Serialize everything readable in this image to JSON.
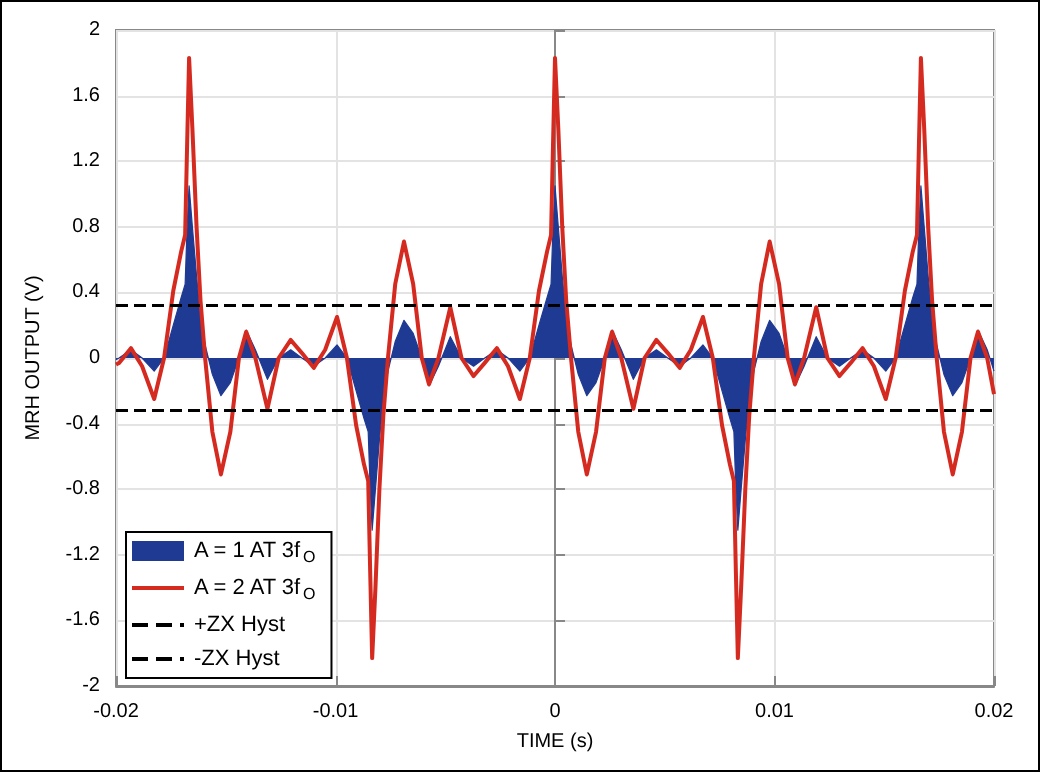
{
  "chart_data": {
    "type": "line",
    "xlabel": "TIME (s)",
    "ylabel": "MRH OUTPUT (V)",
    "xlim": [
      -0.02,
      0.02
    ],
    "xticks": [
      -0.02,
      -0.01,
      0,
      0.01,
      0.02
    ],
    "ylim": [
      -2,
      2
    ],
    "yticks": [
      -2,
      -1.6,
      -1.2,
      -0.8,
      -0.4,
      0,
      0.4,
      0.8,
      1.2,
      1.6,
      2
    ],
    "grid": true,
    "legend": "bottom left",
    "marker": "none",
    "x": [
      -0.02,
      -0.01986,
      -0.01932,
      -0.01881,
      -0.01826,
      -0.01781,
      -0.01739,
      -0.01703,
      -0.01685,
      -0.01676,
      -0.01667,
      -0.01652,
      -0.01633,
      -0.01615,
      -0.01594,
      -0.01561,
      -0.01522,
      -0.01479,
      -0.0144,
      -0.01407,
      -0.01365,
      -0.0131,
      -0.01259,
      -0.01204,
      -0.01153,
      -0.01099,
      -0.01047,
      -0.00993,
      -0.00948,
      -0.00906,
      -0.0087,
      -0.00851,
      -0.00842,
      -0.00833,
      -0.00818,
      -0.008,
      -0.00782,
      -0.00761,
      -0.00728,
      -0.00688,
      -0.00646,
      -0.00607,
      -0.00574,
      -0.00531,
      -0.00477,
      -0.00426,
      -0.00371,
      -0.0032,
      -0.00265,
      -0.00214,
      -0.0016,
      -0.00115,
      -0.00073,
      -0.00036,
      -0.00018,
      -9e-05,
      0,
      0.00015,
      0.00033,
      0.00051,
      0.00073,
      0.00106,
      0.00145,
      0.00187,
      0.00227,
      0.0026,
      0.00302,
      0.00357,
      0.00408,
      0.00462,
      0.00514,
      0.00568,
      0.00619,
      0.00674,
      0.00719,
      0.00761,
      0.00797,
      0.00815,
      0.00824,
      0.00833,
      0.00848,
      0.00867,
      0.00885,
      0.00906,
      0.00939,
      0.00978,
      0.01021,
      0.0106,
      0.01093,
      0.01135,
      0.0119,
      0.01241,
      0.01296,
      0.01347,
      0.01401,
      0.01453,
      0.01507,
      0.01552,
      0.01594,
      0.0163,
      0.01649,
      0.01658,
      0.01667,
      0.01682,
      0.017,
      0.01718,
      0.01739,
      0.01772,
      0.01812,
      0.01854,
      0.01893,
      0.01927,
      0.01969,
      0.02
    ],
    "series": [
      {
        "name": "A = 1 AT 3f$_{O}$",
        "type": "area",
        "color": "#1f3a93",
        "values": [
          -0.01,
          0,
          0.05,
          0,
          -0.08,
          0,
          0.2,
          0.37,
          0.45,
          0.8,
          1.05,
          0.8,
          0.5,
          0.25,
          0.08,
          -0.1,
          -0.23,
          -0.15,
          0,
          0.17,
          0.05,
          -0.13,
          0,
          0.05,
          0,
          -0.05,
          0,
          0.08,
          0,
          -0.2,
          -0.37,
          -0.45,
          -0.8,
          -1.05,
          -0.8,
          -0.5,
          -0.25,
          -0.08,
          0.1,
          0.23,
          0.15,
          0,
          -0.17,
          -0.05,
          0.13,
          0,
          -0.05,
          0,
          0.05,
          0,
          -0.08,
          0,
          0.2,
          0.37,
          0.45,
          0.8,
          1.05,
          0.8,
          0.5,
          0.25,
          0.08,
          -0.1,
          -0.23,
          -0.15,
          0,
          0.17,
          0.05,
          -0.13,
          0,
          0.05,
          0,
          -0.05,
          0,
          0.08,
          0,
          -0.2,
          -0.37,
          -0.45,
          -0.8,
          -1.05,
          -0.8,
          -0.5,
          -0.25,
          -0.08,
          0.1,
          0.23,
          0.15,
          0,
          -0.17,
          -0.05,
          0.13,
          0,
          -0.05,
          0,
          0.05,
          0,
          -0.08,
          0,
          0.2,
          0.37,
          0.45,
          0.8,
          1.05,
          0.8,
          0.5,
          0.25,
          0.08,
          -0.1,
          -0.23,
          -0.15,
          0,
          0.17,
          0.05,
          -0.08
        ]
      },
      {
        "name": "A = 2 AT 3f$_{O}$",
        "color": "#d42a20",
        "values": [
          -0.04,
          -0.03,
          0.06,
          -0.05,
          -0.25,
          0,
          0.41,
          0.65,
          0.75,
          1.3,
          1.83,
          1.4,
          0.8,
          0.35,
          0,
          -0.45,
          -0.71,
          -0.45,
          0,
          0.16,
          0,
          -0.31,
          0,
          0.11,
          0.03,
          -0.06,
          0.05,
          0.25,
          0,
          -0.41,
          -0.65,
          -0.75,
          -1.3,
          -1.83,
          -1.4,
          -0.8,
          -0.35,
          0,
          0.45,
          0.71,
          0.45,
          0,
          -0.16,
          0,
          0.31,
          0,
          -0.11,
          -0.03,
          0.06,
          -0.05,
          -0.25,
          0,
          0.41,
          0.65,
          0.75,
          1.3,
          1.83,
          1.4,
          0.8,
          0.35,
          0,
          -0.45,
          -0.71,
          -0.45,
          0,
          0.16,
          0,
          -0.31,
          0,
          0.11,
          0.03,
          -0.06,
          0.05,
          0.25,
          0,
          -0.41,
          -0.65,
          -0.75,
          -1.3,
          -1.83,
          -1.4,
          -0.8,
          -0.35,
          0,
          0.45,
          0.71,
          0.45,
          0,
          -0.16,
          0,
          0.31,
          0,
          -0.11,
          -0.03,
          0.06,
          -0.05,
          -0.25,
          0,
          0.41,
          0.65,
          0.75,
          1.3,
          1.83,
          1.4,
          0.8,
          0.35,
          0,
          -0.45,
          -0.71,
          -0.45,
          0,
          0.16,
          0,
          -0.22
        ]
      }
    ],
    "ref_lines": [
      {
        "axis": "y",
        "value": 0.32,
        "label": "+ZX Hyst",
        "color": "#000000",
        "line_style": "dashed"
      },
      {
        "axis": "y",
        "value": -0.32,
        "label": "-ZX Hyst",
        "color": "#000000",
        "line_style": "dashed"
      }
    ]
  }
}
